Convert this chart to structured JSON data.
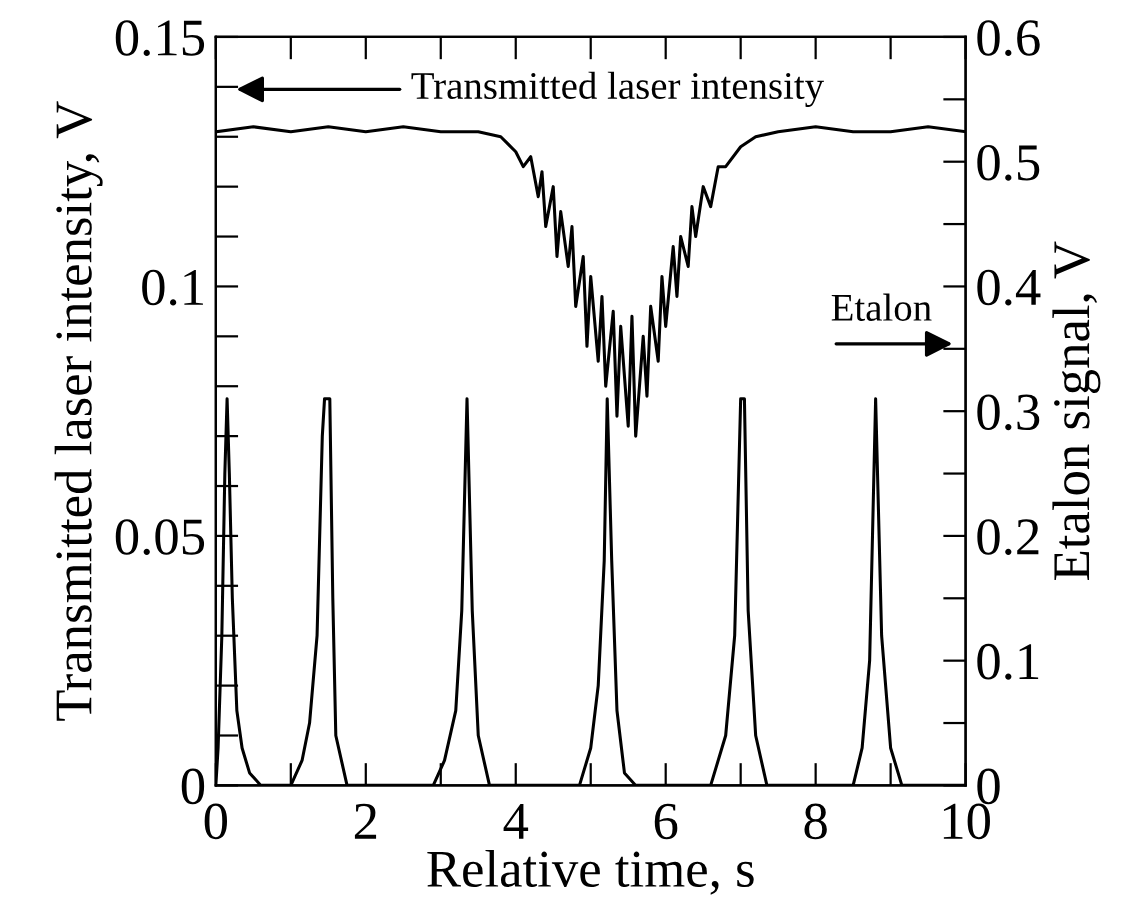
{
  "chart_data": {
    "type": "line",
    "xlabel": "Relative time, s",
    "ylabel": "Transmitted laser intensity, V",
    "y2label": "Etalon signal, V",
    "xlim": [
      0,
      10
    ],
    "xticks": [
      0,
      {
        "value": 1,
        "label": null
      },
      2,
      {
        "value": 3,
        "label": null
      },
      4,
      {
        "value": 5,
        "label": null
      },
      6,
      {
        "value": 7,
        "label": null
      },
      8,
      {
        "value": 9,
        "label": null
      },
      10
    ],
    "ylim": [
      0,
      0.15
    ],
    "yticks": [
      0,
      {
        "value": 0.01,
        "label": null
      },
      {
        "value": 0.02,
        "label": null
      },
      {
        "value": 0.03,
        "label": null
      },
      {
        "value": 0.04,
        "label": null
      },
      0.05,
      {
        "value": 0.06,
        "label": null
      },
      {
        "value": 0.07,
        "label": null
      },
      {
        "value": 0.08,
        "label": null
      },
      {
        "value": 0.09,
        "label": null
      },
      0.1,
      {
        "value": 0.11,
        "label": null
      },
      {
        "value": 0.12,
        "label": null
      },
      {
        "value": 0.13,
        "label": null
      },
      {
        "value": 0.14,
        "label": null
      },
      0.15
    ],
    "y2lim": [
      0,
      0.6
    ],
    "y2ticks": [
      0,
      {
        "value": 0.05,
        "label": null
      },
      0.1,
      {
        "value": 0.15,
        "label": null
      },
      0.2,
      {
        "value": 0.25,
        "label": null
      },
      0.3,
      {
        "value": 0.35,
        "label": null
      },
      0.4,
      {
        "value": 0.45,
        "label": null
      },
      0.5,
      {
        "value": 0.55,
        "label": null
      },
      0.6
    ],
    "grid": false,
    "legend": false,
    "marker": "none",
    "line_style": "solid",
    "annotations": [
      "Transmitted laser intensity",
      "Etalon"
    ],
    "series": [
      {
        "color": "#000000",
        "x": [
          0,
          0.5,
          1,
          1.5,
          2,
          2.5,
          3,
          3.5,
          3.8,
          4.0,
          4.1,
          4.2,
          4.3,
          4.35,
          4.4,
          4.5,
          4.55,
          4.6,
          4.7,
          4.75,
          4.8,
          4.9,
          4.95,
          5.0,
          5.1,
          5.15,
          5.2,
          5.3,
          5.35,
          5.4,
          5.5,
          5.55,
          5.6,
          5.7,
          5.75,
          5.8,
          5.9,
          5.95,
          6.0,
          6.1,
          6.15,
          6.2,
          6.3,
          6.35,
          6.4,
          6.5,
          6.6,
          6.7,
          6.8,
          7.0,
          7.2,
          7.5,
          8,
          8.5,
          9,
          9.5,
          10
        ],
        "values": [
          0.131,
          0.132,
          0.131,
          0.132,
          0.131,
          0.132,
          0.131,
          0.131,
          0.13,
          0.127,
          0.124,
          0.126,
          0.118,
          0.123,
          0.112,
          0.12,
          0.106,
          0.115,
          0.104,
          0.112,
          0.096,
          0.106,
          0.088,
          0.102,
          0.085,
          0.098,
          0.08,
          0.095,
          0.074,
          0.092,
          0.072,
          0.094,
          0.07,
          0.09,
          0.078,
          0.096,
          0.085,
          0.102,
          0.092,
          0.108,
          0.098,
          0.11,
          0.104,
          0.116,
          0.11,
          0.12,
          0.116,
          0.124,
          0.124,
          0.128,
          0.13,
          0.131,
          0.132,
          0.131,
          0.131,
          0.132,
          0.131
        ]
      },
      {
        "color": "#000000",
        "axis": "y2",
        "x": [
          0,
          0.03,
          0.08,
          0.12,
          0.15,
          0.18,
          0.22,
          0.28,
          0.35,
          0.45,
          0.6,
          1.0,
          1.15,
          1.25,
          1.35,
          1.42,
          1.45,
          1.52,
          1.56,
          1.6,
          1.75,
          2.9,
          3.05,
          3.2,
          3.28,
          3.35,
          3.42,
          3.5,
          3.65,
          4.85,
          5.0,
          5.1,
          5.18,
          5.22,
          5.28,
          5.35,
          5.45,
          5.6,
          6.6,
          6.8,
          6.92,
          7.0,
          7.05,
          7.1,
          7.2,
          7.35,
          8.5,
          8.62,
          8.72,
          8.8,
          8.88,
          9.0,
          9.15,
          10
        ],
        "values": [
          0,
          0.03,
          0.12,
          0.25,
          0.31,
          0.25,
          0.15,
          0.06,
          0.03,
          0.01,
          0,
          0,
          0.02,
          0.05,
          0.12,
          0.28,
          0.31,
          0.31,
          0.15,
          0.04,
          0,
          0,
          0.02,
          0.06,
          0.14,
          0.31,
          0.14,
          0.04,
          0,
          0,
          0.03,
          0.08,
          0.18,
          0.31,
          0.18,
          0.06,
          0.01,
          0,
          0,
          0.04,
          0.12,
          0.31,
          0.31,
          0.14,
          0.04,
          0,
          0,
          0.03,
          0.1,
          0.31,
          0.12,
          0.03,
          0,
          0
        ]
      }
    ]
  }
}
